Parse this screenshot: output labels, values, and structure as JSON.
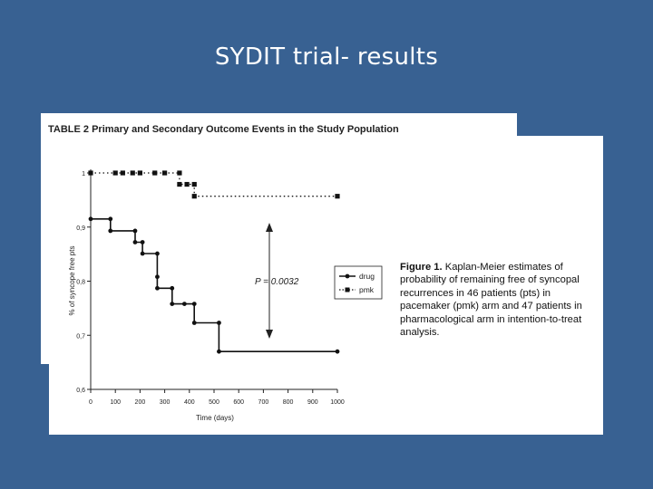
{
  "slide": {
    "title": "SYDIT trial- results"
  },
  "table_scan": {
    "title": "TABLE 2 Primary and Secondary Outcome Events in the Study Population"
  },
  "figure": {
    "caption_label": "Figure 1.",
    "caption_text": "Kaplan-Meier estimates of probability of remaining free of syncopal recurrences in 46 patients (pts) in pacemaker (pmk) arm and 47 patients in pharmacological arm in intention-to-treat analysis.",
    "p_value": "P = 0.0032"
  },
  "chart_data": {
    "type": "line",
    "xlabel": "Time (days)",
    "ylabel": "% of syncope free pts",
    "xlim": [
      0,
      1000
    ],
    "ylim": [
      0.6,
      1.0
    ],
    "x_ticks": [
      0,
      100,
      200,
      300,
      400,
      500,
      600,
      700,
      800,
      900,
      1000
    ],
    "y_ticks": [
      {
        "value": 0.6,
        "label": "0,6"
      },
      {
        "value": 0.7,
        "label": "0,7"
      },
      {
        "value": 0.8,
        "label": "0,8"
      },
      {
        "value": 0.9,
        "label": "0,9"
      },
      {
        "value": 1.0,
        "label": "1"
      }
    ],
    "legend_position": "right-middle",
    "series": [
      {
        "name": "drug",
        "color": "#111111",
        "style": "solid",
        "marker": "circle",
        "step_points": [
          [
            0,
            0.915
          ],
          [
            80,
            0.915
          ],
          [
            80,
            0.893
          ],
          [
            180,
            0.893
          ],
          [
            180,
            0.872
          ],
          [
            210,
            0.872
          ],
          [
            210,
            0.851
          ],
          [
            270,
            0.851
          ],
          [
            270,
            0.787
          ],
          [
            330,
            0.787
          ],
          [
            330,
            0.758
          ],
          [
            420,
            0.758
          ],
          [
            420,
            0.723
          ],
          [
            520,
            0.723
          ],
          [
            520,
            0.67
          ],
          [
            1000,
            0.67
          ]
        ],
        "markers": [
          [
            0,
            0.915
          ],
          [
            80,
            0.915
          ],
          [
            80,
            0.893
          ],
          [
            180,
            0.893
          ],
          [
            180,
            0.872
          ],
          [
            210,
            0.872
          ],
          [
            210,
            0.851
          ],
          [
            270,
            0.851
          ],
          [
            270,
            0.808
          ],
          [
            270,
            0.787
          ],
          [
            330,
            0.787
          ],
          [
            330,
            0.758
          ],
          [
            380,
            0.758
          ],
          [
            420,
            0.758
          ],
          [
            420,
            0.723
          ],
          [
            520,
            0.723
          ],
          [
            520,
            0.67
          ],
          [
            1000,
            0.67
          ]
        ]
      },
      {
        "name": "pmk",
        "color": "#111111",
        "style": "dotted",
        "marker": "square",
        "step_points": [
          [
            0,
            1.0
          ],
          [
            360,
            1.0
          ],
          [
            360,
            0.979
          ],
          [
            420,
            0.979
          ],
          [
            420,
            0.957
          ],
          [
            1000,
            0.957
          ]
        ],
        "markers": [
          [
            0,
            1.0
          ],
          [
            100,
            1.0
          ],
          [
            130,
            1.0
          ],
          [
            170,
            1.0
          ],
          [
            200,
            1.0
          ],
          [
            260,
            1.0
          ],
          [
            300,
            1.0
          ],
          [
            360,
            1.0
          ],
          [
            360,
            0.979
          ],
          [
            390,
            0.979
          ],
          [
            420,
            0.979
          ],
          [
            420,
            0.957
          ],
          [
            1000,
            0.957
          ]
        ]
      }
    ]
  }
}
